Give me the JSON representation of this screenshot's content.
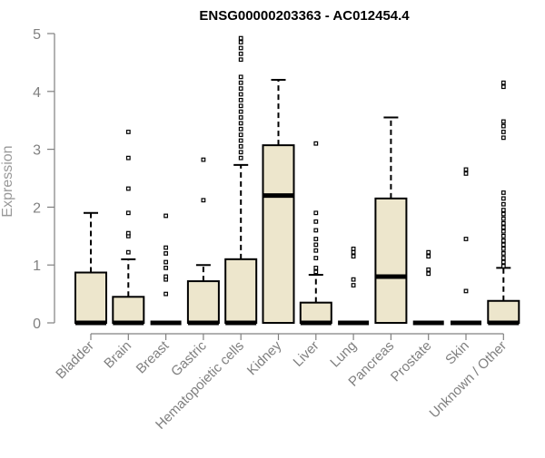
{
  "chart_data": {
    "type": "boxplot",
    "title": "ENSG00000203363 - AC012454.4",
    "ylabel": "Expression",
    "xlabel": "",
    "ylim": [
      0,
      5
    ],
    "yticks": [
      0,
      1,
      2,
      3,
      4,
      5
    ],
    "grid": false,
    "legend": "none",
    "colors": {
      "box_fill": "#ede6cc",
      "stroke": "#000000",
      "axis": "#808080",
      "title": "#000000"
    },
    "categories": [
      "Bladder",
      "Brain",
      "Breast",
      "Gastric",
      "Hematopoietic cells",
      "Kidney",
      "Liver",
      "Lung",
      "Pancreas",
      "Prostate",
      "Skin",
      "Unknown / Other"
    ],
    "boxes": [
      {
        "category": "Bladder",
        "min": 0,
        "q1": 0,
        "median": 0,
        "q3": 0.87,
        "max": 1.9,
        "outliers": []
      },
      {
        "category": "Brain",
        "min": 0,
        "q1": 0,
        "median": 0,
        "q3": 0.45,
        "max": 1.1,
        "outliers": [
          1.22,
          1.5,
          1.55,
          1.9,
          2.32,
          2.85,
          3.3
        ]
      },
      {
        "category": "Breast",
        "min": 0,
        "q1": 0,
        "median": 0,
        "q3": 0,
        "max": 0,
        "outliers": [
          0.5,
          0.75,
          0.8,
          0.95,
          1.05,
          1.2,
          1.3,
          1.85
        ]
      },
      {
        "category": "Gastric",
        "min": 0,
        "q1": 0,
        "median": 0,
        "q3": 0.72,
        "max": 1.0,
        "outliers": [
          2.12,
          2.82
        ]
      },
      {
        "category": "Hematopoietic cells",
        "min": 0,
        "q1": 0,
        "median": 0,
        "q3": 1.1,
        "max": 2.73,
        "outliers": [
          2.85,
          2.95,
          3.05,
          3.15,
          3.25,
          3.35,
          3.45,
          3.55,
          3.65,
          3.75,
          3.85,
          3.95,
          4.05,
          4.15,
          4.25,
          4.55,
          4.65,
          4.75,
          4.85,
          4.92
        ]
      },
      {
        "category": "Kidney",
        "min": 0,
        "q1": 0,
        "median": 2.2,
        "q3": 3.07,
        "max": 4.2,
        "outliers": []
      },
      {
        "category": "Liver",
        "min": 0,
        "q1": 0,
        "median": 0,
        "q3": 0.35,
        "max": 0.83,
        "outliers": [
          0.88,
          0.95,
          1.12,
          1.25,
          1.35,
          1.45,
          1.6,
          1.75,
          1.9,
          3.1
        ]
      },
      {
        "category": "Lung",
        "min": 0,
        "q1": 0,
        "median": 0,
        "q3": 0,
        "max": 0,
        "outliers": [
          0.65,
          0.75,
          1.15,
          1.22,
          1.28
        ]
      },
      {
        "category": "Pancreas",
        "min": 0,
        "q1": 0,
        "median": 0.8,
        "q3": 2.15,
        "max": 3.55,
        "outliers": []
      },
      {
        "category": "Prostate",
        "min": 0,
        "q1": 0,
        "median": 0,
        "q3": 0,
        "max": 0,
        "outliers": [
          0.85,
          0.92,
          1.15,
          1.22
        ]
      },
      {
        "category": "Skin",
        "min": 0,
        "q1": 0,
        "median": 0,
        "q3": 0,
        "max": 0,
        "outliers": [
          0.55,
          1.45,
          2.58,
          2.65
        ]
      },
      {
        "category": "Unknown / Other",
        "min": 0,
        "q1": 0,
        "median": 0,
        "q3": 0.38,
        "max": 0.95,
        "outliers": [
          0.98,
          1.05,
          1.12,
          1.2,
          1.28,
          1.35,
          1.42,
          1.5,
          1.58,
          1.65,
          1.72,
          1.8,
          1.88,
          1.95,
          2.05,
          2.15,
          2.25,
          3.2,
          3.3,
          3.4,
          3.48,
          4.08,
          4.15
        ]
      }
    ]
  }
}
